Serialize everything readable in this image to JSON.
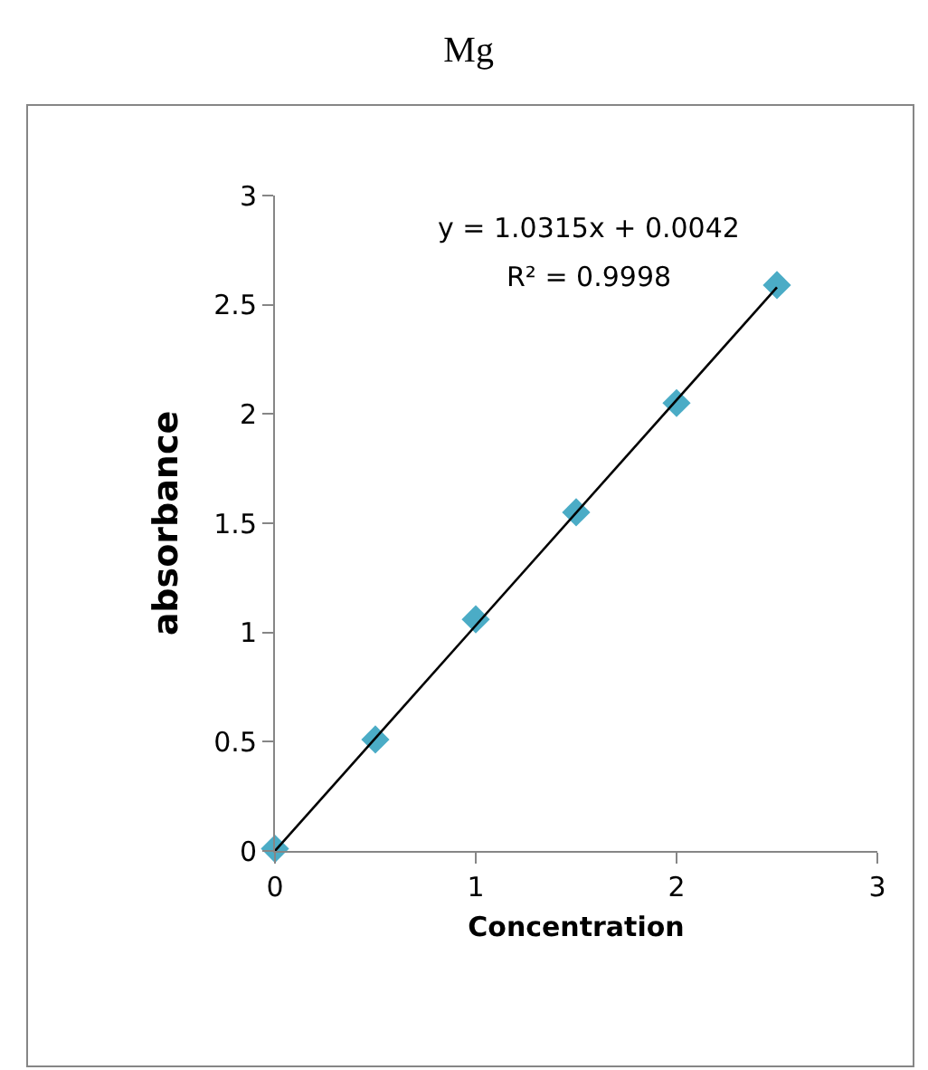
{
  "chart_data": {
    "type": "scatter",
    "title": "Mg",
    "xlabel": "Concentration",
    "ylabel": "absorbance",
    "x": [
      0,
      0.5,
      1,
      1.5,
      2,
      2.5
    ],
    "series": [
      {
        "color": "#4bacc6",
        "marker": "diamond",
        "values": [
          0.01,
          0.51,
          1.06,
          1.55,
          2.05,
          2.59
        ]
      },
      {
        "type": "line",
        "color": "#000000",
        "marker": "none",
        "x": [
          0,
          2.5
        ],
        "values": [
          0.0,
          2.58
        ]
      }
    ],
    "annotations": [
      "y = 1.0315x + 0.0042",
      "R² = 0.9998"
    ],
    "xlim": [
      0,
      3
    ],
    "xticks": [
      0,
      1,
      2,
      3
    ],
    "ylim": [
      0,
      3
    ],
    "yticks": [
      0,
      0.5,
      1,
      1.5,
      2,
      2.5,
      3
    ]
  }
}
